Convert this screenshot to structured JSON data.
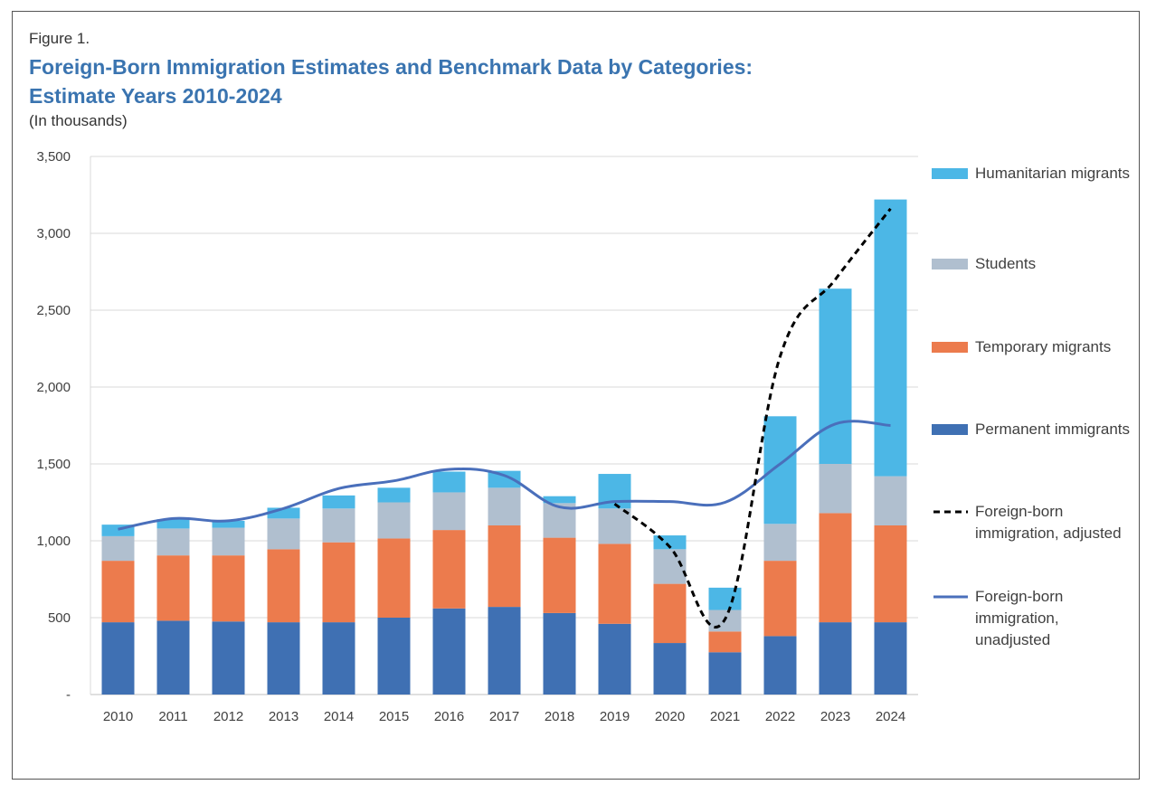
{
  "figure_label": "Figure 1.",
  "title_line1": "Foreign-Born Immigration Estimates and Benchmark Data by Categories:",
  "title_line2": "Estimate Years 2010-2024",
  "subtitle": "(In thousands)",
  "colors": {
    "permanent": "#3f70b3",
    "temporary": "#ec7b4d",
    "students": "#b0bfcf",
    "humanitarian": "#4cb7e6",
    "adjusted": "#000000",
    "unadjusted": "#4a6fbb",
    "grid": "#d9d9d9",
    "title": "#3a74b0"
  },
  "legend": [
    {
      "key": "humanitarian",
      "label": "Humanitarian migrants",
      "kind": "bar"
    },
    {
      "key": "students",
      "label": "Students",
      "kind": "bar"
    },
    {
      "key": "temporary",
      "label": "Temporary migrants",
      "kind": "bar"
    },
    {
      "key": "permanent",
      "label": "Permanent immigrants",
      "kind": "bar"
    },
    {
      "key": "adjusted",
      "label": "Foreign-born immigration, adjusted",
      "kind": "dashed"
    },
    {
      "key": "unadjusted",
      "label": "Foreign-born immigration, unadjusted",
      "kind": "line"
    }
  ],
  "chart_data": {
    "type": "bar",
    "stacked": true,
    "categories": [
      "2010",
      "2011",
      "2012",
      "2013",
      "2014",
      "2015",
      "2016",
      "2017",
      "2018",
      "2019",
      "2020",
      "2021",
      "2022",
      "2023",
      "2024"
    ],
    "yticks": [
      "-",
      "500",
      "1,000",
      "1,500",
      "2,000",
      "2,500",
      "3,000",
      "3,500"
    ],
    "ylim": [
      0,
      3500
    ],
    "grid": true,
    "legend_position": "right",
    "series": [
      {
        "name": "Permanent immigrants",
        "key": "permanent",
        "values": [
          470,
          480,
          475,
          470,
          470,
          500,
          560,
          570,
          530,
          460,
          335,
          275,
          380,
          470,
          470
        ]
      },
      {
        "name": "Temporary migrants",
        "key": "temporary",
        "values": [
          400,
          425,
          430,
          475,
          520,
          515,
          510,
          530,
          490,
          520,
          385,
          135,
          490,
          710,
          630
        ]
      },
      {
        "name": "Students",
        "key": "students",
        "values": [
          160,
          175,
          180,
          200,
          220,
          235,
          245,
          245,
          225,
          230,
          225,
          140,
          240,
          320,
          320
        ]
      },
      {
        "name": "Humanitarian migrants",
        "key": "humanitarian",
        "values": [
          75,
          60,
          45,
          70,
          85,
          95,
          135,
          110,
          45,
          225,
          90,
          145,
          700,
          1140,
          1800
        ]
      }
    ],
    "lines": [
      {
        "name": "Foreign-born immigration, unadjusted",
        "key": "unadjusted",
        "style": "solid",
        "values": [
          1075,
          1145,
          1130,
          1210,
          1340,
          1390,
          1465,
          1425,
          1220,
          1255,
          1255,
          1250,
          1500,
          1760,
          1750
        ]
      },
      {
        "name": "Foreign-born immigration, adjusted",
        "key": "adjusted",
        "style": "dashed",
        "start_index": 9,
        "values": [
          null,
          null,
          null,
          null,
          null,
          null,
          null,
          null,
          null,
          1240,
          960,
          490,
          2200,
          2700,
          3160
        ]
      }
    ]
  }
}
